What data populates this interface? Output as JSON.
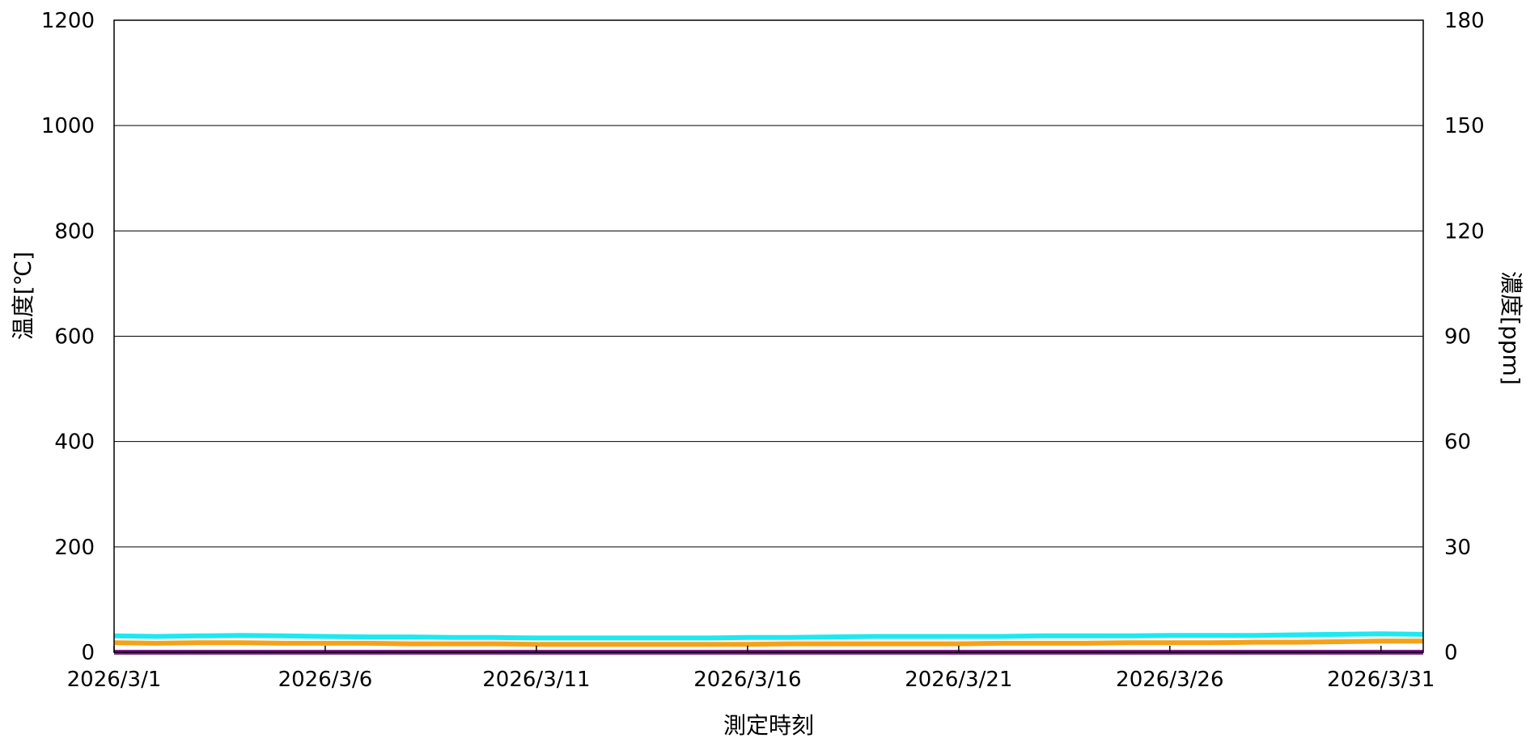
{
  "chart_data": {
    "type": "line",
    "title": "",
    "xlabel": "測定時刻",
    "ylabel": "温度[℃]",
    "y2label": "濃度[ppm]",
    "x_range": [
      "2026/3/1",
      "2026/4/1"
    ],
    "xticks": [
      "2026/3/1",
      "2026/3/6",
      "2026/3/11",
      "2026/3/16",
      "2026/3/21",
      "2026/3/26",
      "2026/3/31"
    ],
    "ylim": [
      0,
      1200
    ],
    "yticks": [
      "0",
      "200",
      "400",
      "600",
      "800",
      "1000",
      "1200"
    ],
    "y2lim": [
      0,
      180
    ],
    "y2ticks": [
      "0",
      "30",
      "60",
      "90",
      "120",
      "150",
      "180"
    ],
    "grid": true,
    "legend": "none",
    "colors": {
      "cyan": "#1EE8F0",
      "orange": "#F5A21A",
      "purple": "#7B1E8C",
      "axis": "#000000"
    },
    "series": [
      {
        "axis": "left",
        "color": "#1EE8F0",
        "x": [
          "2026/3/1",
          "2026/3/2",
          "2026/3/3",
          "2026/3/4",
          "2026/3/5",
          "2026/3/6",
          "2026/3/7",
          "2026/3/8",
          "2026/3/9",
          "2026/3/10",
          "2026/3/11",
          "2026/3/12",
          "2026/3/13",
          "2026/3/14",
          "2026/3/15",
          "2026/3/16",
          "2026/3/17",
          "2026/3/18",
          "2026/3/19",
          "2026/3/20",
          "2026/3/21",
          "2026/3/22",
          "2026/3/23",
          "2026/3/24",
          "2026/3/25",
          "2026/3/26",
          "2026/3/27",
          "2026/3/28",
          "2026/3/29",
          "2026/3/30",
          "2026/3/31",
          "2026/4/1"
        ],
        "values": [
          31,
          30,
          31,
          32,
          31,
          30,
          29,
          29,
          28,
          28,
          27,
          27,
          27,
          27,
          27,
          28,
          28,
          29,
          30,
          30,
          30,
          30,
          31,
          31,
          31,
          32,
          32,
          32,
          33,
          34,
          35,
          34
        ]
      },
      {
        "axis": "left",
        "color": "#F5A21A",
        "x": [
          "2026/3/1",
          "2026/3/2",
          "2026/3/3",
          "2026/3/4",
          "2026/3/5",
          "2026/3/6",
          "2026/3/7",
          "2026/3/8",
          "2026/3/9",
          "2026/3/10",
          "2026/3/11",
          "2026/3/12",
          "2026/3/13",
          "2026/3/14",
          "2026/3/15",
          "2026/3/16",
          "2026/3/17",
          "2026/3/18",
          "2026/3/19",
          "2026/3/20",
          "2026/3/21",
          "2026/3/22",
          "2026/3/23",
          "2026/3/24",
          "2026/3/25",
          "2026/3/26",
          "2026/3/27",
          "2026/3/28",
          "2026/3/29",
          "2026/3/30",
          "2026/3/31",
          "2026/4/1"
        ],
        "values": [
          18,
          17,
          18,
          18,
          17,
          17,
          17,
          16,
          16,
          16,
          15,
          15,
          15,
          15,
          15,
          15,
          16,
          16,
          16,
          16,
          16,
          17,
          17,
          17,
          18,
          18,
          18,
          19,
          19,
          20,
          21,
          21
        ]
      },
      {
        "axis": "right",
        "color": "#7B1E8C",
        "x": [
          "2026/3/1",
          "2026/4/1"
        ],
        "values": [
          0,
          0
        ]
      }
    ]
  }
}
